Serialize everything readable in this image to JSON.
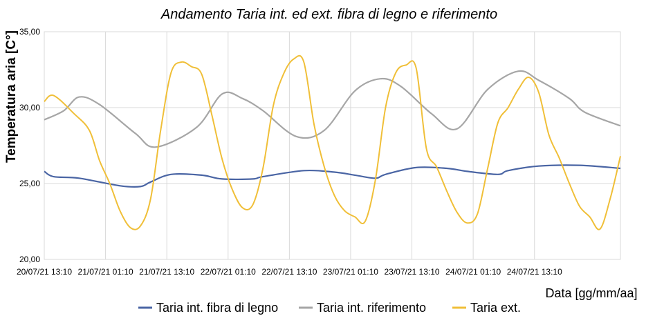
{
  "chart_data": {
    "type": "line",
    "title": "Andamento Taria int. ed ext. fibra di legno e riferimento",
    "xlabel": "Data [gg/mm/aa]",
    "ylabel": "Temperatura aria [C°]",
    "ylim": [
      20,
      35
    ],
    "y_ticks": [
      "20,00",
      "25,00",
      "30,00",
      "35,00"
    ],
    "x_range": [
      "20/07/21 13:10",
      "25/07/21 06:00"
    ],
    "x_ticks": [
      "20/07/21 13:10",
      "21/07/21 01:10",
      "21/07/21 13:10",
      "22/07/21 01:10",
      "22/07/21 13:10",
      "23/07/21 01:10",
      "23/07/21 13:10",
      "24/07/21 01:10",
      "24/07/21 13:10"
    ],
    "grid": true,
    "legend_position": "bottom",
    "series": [
      {
        "name": "Taria int. fibra di legno",
        "color": "#4a65a4",
        "x": [
          "20/07/21 13:10",
          "20/07/21 15:00",
          "20/07/21 20:00",
          "21/07/21 04:00",
          "21/07/21 08:00",
          "21/07/21 10:00",
          "21/07/21 14:00",
          "21/07/21 20:00",
          "22/07/21 00:00",
          "22/07/21 06:00",
          "22/07/21 08:00",
          "22/07/21 16:00",
          "22/07/21 22:00",
          "23/07/21 02:00",
          "23/07/21 06:00",
          "23/07/21 08:00",
          "23/07/21 14:00",
          "23/07/21 20:00",
          "24/07/21 00:00",
          "24/07/21 06:00",
          "24/07/21 08:00",
          "24/07/21 14:00",
          "24/07/21 22:00",
          "25/07/21 06:00"
        ],
        "y": [
          25.8,
          25.45,
          25.35,
          24.85,
          24.8,
          25.1,
          25.6,
          25.55,
          25.3,
          25.3,
          25.45,
          25.85,
          25.75,
          25.55,
          25.35,
          25.6,
          26.05,
          26.0,
          25.8,
          25.6,
          25.85,
          26.15,
          26.2,
          26.0
        ]
      },
      {
        "name": "Taria int. riferimento",
        "color": "#a6a6a6",
        "x": [
          "20/07/21 13:10",
          "20/07/21 17:00",
          "20/07/21 20:00",
          "21/07/21 00:00",
          "21/07/21 07:00",
          "21/07/21 11:00",
          "21/07/21 19:00",
          "22/07/21 00:00",
          "22/07/21 04:00",
          "22/07/21 08:00",
          "22/07/21 14:30",
          "22/07/21 20:00",
          "23/07/21 02:00",
          "23/07/21 07:00",
          "23/07/21 11:00",
          "23/07/21 17:00",
          "23/07/21 22:00",
          "24/07/21 04:00",
          "24/07/21 10:00",
          "24/07/21 14:00",
          "24/07/21 20:00",
          "24/07/21 23:00",
          "25/07/21 06:00"
        ],
        "y": [
          29.2,
          29.8,
          30.7,
          30.2,
          28.3,
          27.4,
          28.7,
          30.9,
          30.6,
          29.8,
          28.1,
          28.5,
          31.1,
          31.9,
          31.4,
          29.6,
          28.6,
          31.2,
          32.4,
          31.8,
          30.6,
          29.7,
          28.8
        ]
      },
      {
        "name": "Taria ext.",
        "color": "#f0bf38",
        "x": [
          "20/07/21 13:10",
          "20/07/21 15:00",
          "20/07/21 19:00",
          "20/07/21 22:00",
          "21/07/21 00:00",
          "21/07/21 02:00",
          "21/07/21 04:00",
          "21/07/21 06:00",
          "21/07/21 08:00",
          "21/07/21 10:00",
          "21/07/21 12:00",
          "21/07/21 14:00",
          "21/07/21 16:00",
          "21/07/21 18:00",
          "21/07/21 20:00",
          "21/07/21 22:00",
          "22/07/21 00:00",
          "22/07/21 02:00",
          "22/07/21 04:00",
          "22/07/21 06:00",
          "22/07/21 08:00",
          "22/07/21 10:00",
          "22/07/21 12:00",
          "22/07/21 14:00",
          "22/07/21 16:00",
          "22/07/21 18:00",
          "22/07/21 20:00",
          "22/07/21 22:00",
          "23/07/21 00:00",
          "23/07/21 02:00",
          "23/07/21 04:00",
          "23/07/21 06:00",
          "23/07/21 08:00",
          "23/07/21 10:00",
          "23/07/21 12:00",
          "23/07/21 14:00",
          "23/07/21 16:00",
          "23/07/21 18:00",
          "23/07/21 20:00",
          "23/07/21 22:00",
          "24/07/21 00:00",
          "24/07/21 02:00",
          "24/07/21 04:00",
          "24/07/21 06:00",
          "24/07/21 08:00",
          "24/07/21 10:00",
          "24/07/21 12:00",
          "24/07/21 14:00",
          "24/07/21 16:00",
          "24/07/21 18:00",
          "24/07/21 20:00",
          "24/07/21 22:00",
          "25/07/21 00:00",
          "25/07/21 02:00",
          "25/07/21 04:00",
          "25/07/21 06:00"
        ],
        "y": [
          30.4,
          30.8,
          29.6,
          28.5,
          26.5,
          25.0,
          23.2,
          22.1,
          22.2,
          24.0,
          28.6,
          32.3,
          33.0,
          32.7,
          32.2,
          29.5,
          26.6,
          24.6,
          23.4,
          23.6,
          26.0,
          30.1,
          32.2,
          33.2,
          33.0,
          28.9,
          26.1,
          24.2,
          23.2,
          22.8,
          22.5,
          25.2,
          30.0,
          32.3,
          32.8,
          32.6,
          27.3,
          26.1,
          24.5,
          23.1,
          22.4,
          23.0,
          26.0,
          29.0,
          30.0,
          31.2,
          32.0,
          31.0,
          28.2,
          26.7,
          25.0,
          23.5,
          22.8,
          22.0,
          24.0,
          26.8
        ]
      }
    ]
  }
}
